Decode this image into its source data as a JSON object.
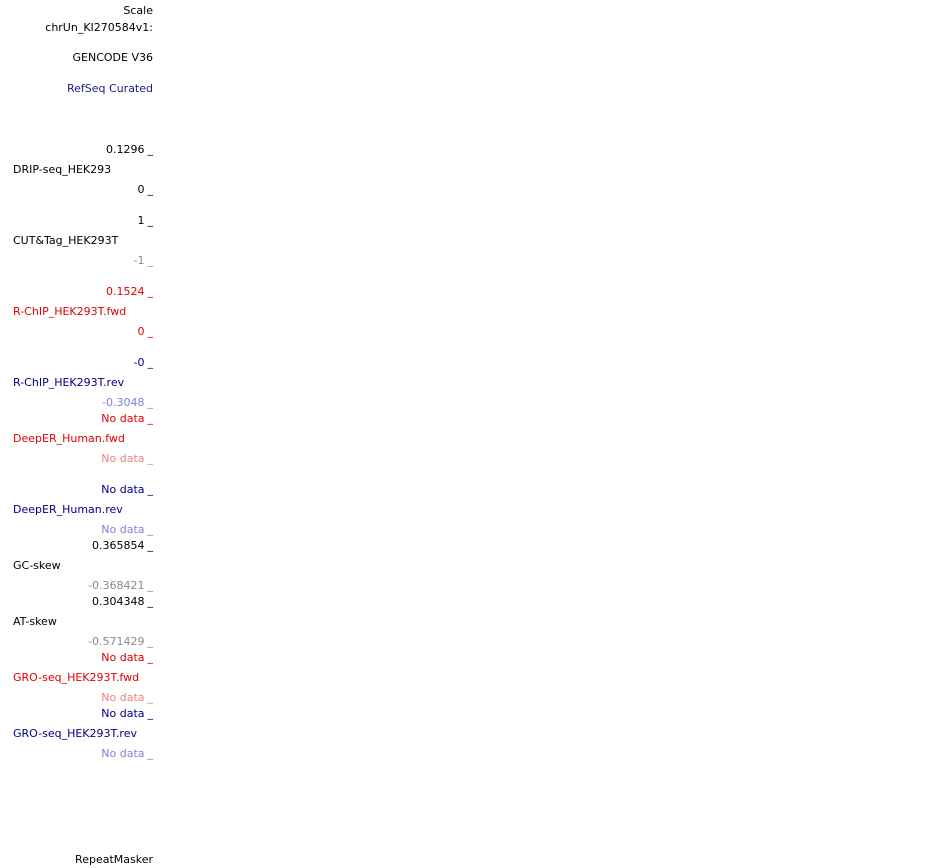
{
  "colors": {
    "default": "#000000",
    "default_light": "#8a8a8a",
    "red": "#e00000",
    "red_light": "#f08080",
    "blue": "#000080",
    "blue_light": "#8080e0",
    "refseq_blue": "#1a1a8a"
  },
  "scale": {
    "label": "Scale",
    "chrom": "chrUn_KI270584v1:"
  },
  "tracks": {
    "gencode": {
      "label": "GENCODE V36"
    },
    "refseq": {
      "label": "RefSeq Curated"
    },
    "drip": {
      "name": "DRIP-seq_HEK293",
      "max": "0.1296",
      "min": "0"
    },
    "cuttag": {
      "name": "CUT&Tag_HEK293T",
      "max": "1",
      "min": "-1"
    },
    "rchip_fwd": {
      "name": "R-ChIP_HEK293T.fwd",
      "max": "0.1524",
      "min": "0"
    },
    "rchip_rev": {
      "name": "R-ChIP_HEK293T.rev",
      "max": "-0",
      "min": "-0.3048"
    },
    "deeper_fwd": {
      "name": "DeepER_Human.fwd",
      "max": "No data",
      "min": "No data"
    },
    "deeper_rev": {
      "name": "DeepER_Human.rev",
      "max": "No data",
      "min": "No data"
    },
    "gcskew": {
      "name": "GC-skew",
      "max": "0.365854",
      "min": "-0.368421"
    },
    "atskew": {
      "name": "AT-skew",
      "max": "0.304348",
      "min": "-0.571429"
    },
    "gro_fwd": {
      "name": "GRO-seq_HEK293T.fwd",
      "max": "No data",
      "min": "No data"
    },
    "gro_rev": {
      "name": "GRO-seq_HEK293T.rev",
      "max": "No data",
      "min": "No data"
    },
    "repeatmasker": {
      "label": "RepeatMasker"
    }
  },
  "tick_mark": "_"
}
